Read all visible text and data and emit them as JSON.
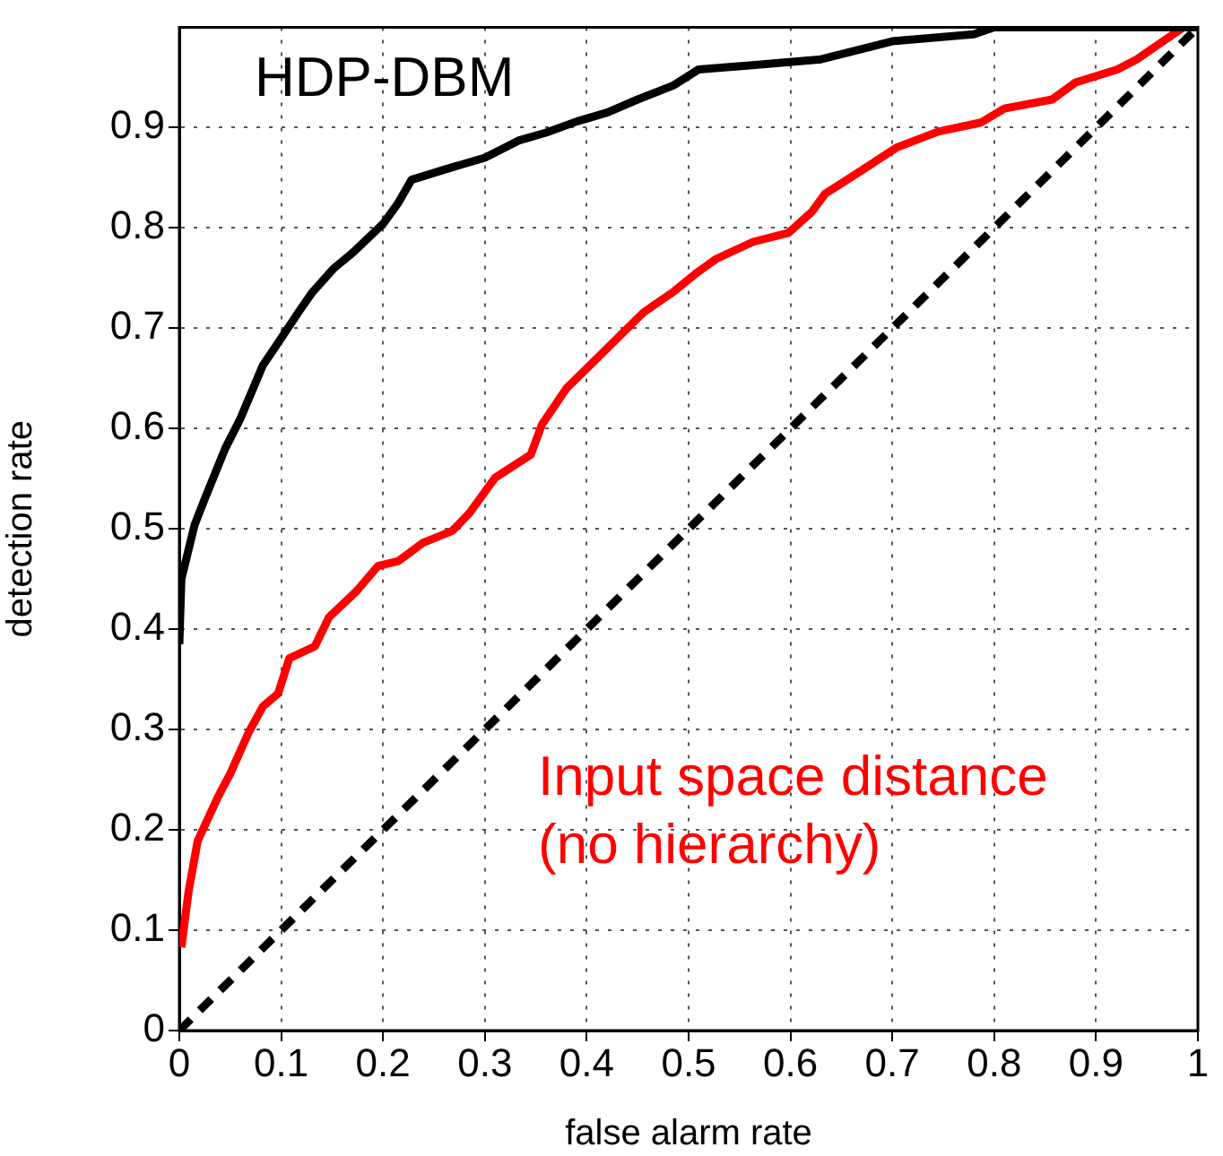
{
  "chart_data": {
    "type": "line",
    "xlabel": "false alarm rate",
    "ylabel": "detection rate",
    "xlim": [
      0,
      1
    ],
    "ylim": [
      0,
      1
    ],
    "xticks": [
      0,
      0.1,
      0.2,
      0.3,
      0.4,
      0.5,
      0.6,
      0.7,
      0.8,
      0.9,
      1
    ],
    "yticks": [
      0,
      0.1,
      0.2,
      0.3,
      0.4,
      0.5,
      0.6,
      0.7,
      0.8,
      0.9
    ],
    "grid": true,
    "legend": false,
    "marker": "none",
    "series": [
      {
        "name": "HDP-DBM",
        "color": "#000000",
        "line_style": "solid",
        "x": [
          0,
          0.002,
          0.015,
          0.025,
          0.045,
          0.06,
          0.082,
          0.1,
          0.117,
          0.13,
          0.152,
          0.17,
          0.2,
          0.215,
          0.228,
          0.26,
          0.3,
          0.333,
          0.36,
          0.39,
          0.42,
          0.45,
          0.485,
          0.51,
          0.56,
          0.63,
          0.7,
          0.78,
          0.8,
          1
        ],
        "values": [
          0.385,
          0.45,
          0.504,
          0.53,
          0.58,
          0.61,
          0.663,
          0.69,
          0.716,
          0.735,
          0.76,
          0.775,
          0.804,
          0.825,
          0.848,
          0.858,
          0.87,
          0.887,
          0.895,
          0.906,
          0.915,
          0.928,
          0.942,
          0.958,
          0.962,
          0.968,
          0.986,
          0.993,
          1,
          1
        ]
      },
      {
        "name": "Input space distance (no hierarchy)",
        "color": "#ff0000",
        "line_style": "solid",
        "x": [
          0.002,
          0.009,
          0.018,
          0.038,
          0.05,
          0.068,
          0.082,
          0.097,
          0.108,
          0.133,
          0.147,
          0.174,
          0.195,
          0.215,
          0.239,
          0.268,
          0.285,
          0.31,
          0.345,
          0.356,
          0.38,
          0.403,
          0.433,
          0.456,
          0.486,
          0.509,
          0.527,
          0.563,
          0.598,
          0.621,
          0.634,
          0.674,
          0.704,
          0.745,
          0.787,
          0.81,
          0.857,
          0.88,
          0.921,
          0.94,
          0.963,
          0.986
        ],
        "values": [
          0.083,
          0.138,
          0.189,
          0.233,
          0.256,
          0.297,
          0.323,
          0.336,
          0.371,
          0.383,
          0.412,
          0.438,
          0.463,
          0.468,
          0.486,
          0.498,
          0.516,
          0.551,
          0.574,
          0.604,
          0.64,
          0.663,
          0.693,
          0.716,
          0.737,
          0.756,
          0.769,
          0.786,
          0.795,
          0.816,
          0.834,
          0.86,
          0.88,
          0.896,
          0.905,
          0.919,
          0.928,
          0.945,
          0.958,
          0.968,
          0.984,
          1
        ]
      },
      {
        "color": "#000000",
        "line_style": "dashed",
        "x": [
          0,
          1
        ],
        "values": [
          0,
          1
        ]
      }
    ]
  }
}
